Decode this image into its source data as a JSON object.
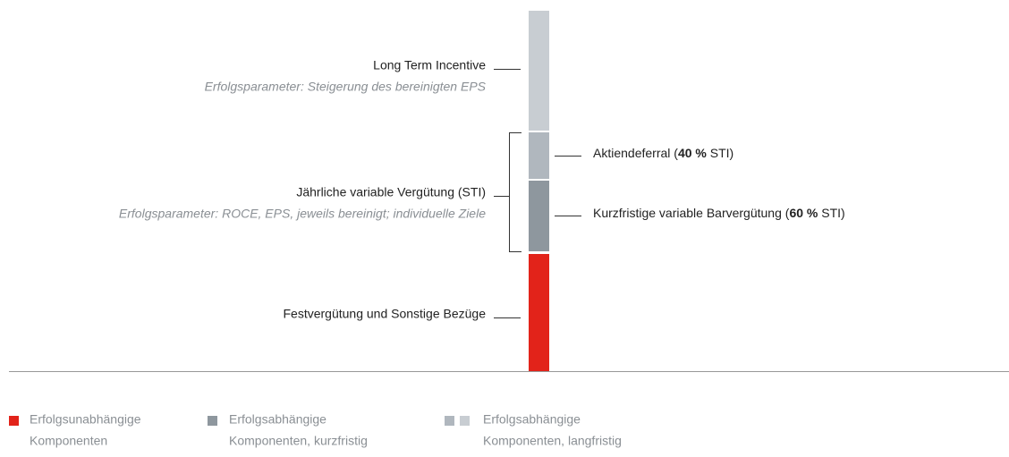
{
  "left_labels": {
    "lti": {
      "title": "Long Term Incentive",
      "subtitle": "Erfolgsparameter: Steigerung des bereinigten EPS"
    },
    "sti": {
      "title": "Jährliche variable Vergütung (STI)",
      "subtitle": "Erfolgsparameter: ROCE, EPS, jeweils bereinigt; individuelle Ziele"
    },
    "fixed": {
      "title": "Festvergütung und Sonstige Bezüge"
    }
  },
  "right_labels": {
    "deferral": {
      "prefix": "Aktiendeferral (",
      "bold": "40 %",
      "suffix": " STI)"
    },
    "cash": {
      "prefix": "Kurzfristige variable Barvergütung (",
      "bold": "60 %",
      "suffix": " STI)"
    }
  },
  "legend": [
    {
      "line1": "Erfolgsunabhängige",
      "line2": "Komponenten"
    },
    {
      "line1": "Erfolgsabhängige",
      "line2": "Komponenten, kurzfristig"
    },
    {
      "line1": "Erfolgsabhängige",
      "line2": "Komponenten, langfristig"
    }
  ]
}
